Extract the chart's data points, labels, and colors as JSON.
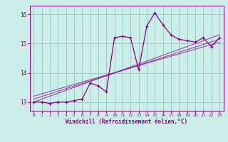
{
  "title": "",
  "xlabel": "Windchill (Refroidissement éolien,°C)",
  "ylabel": "",
  "bg_color": "#cceee8",
  "line_color": "#880088",
  "grid_color": "#99cccc",
  "x_data": [
    0,
    1,
    2,
    3,
    4,
    5,
    6,
    7,
    8,
    9,
    10,
    11,
    12,
    13,
    14,
    15,
    16,
    17,
    18,
    19,
    20,
    21,
    22,
    23
  ],
  "y_main": [
    13.0,
    13.0,
    12.95,
    13.0,
    13.0,
    13.05,
    13.1,
    13.65,
    13.55,
    13.35,
    15.2,
    15.25,
    15.2,
    14.1,
    15.6,
    16.05,
    15.65,
    15.3,
    15.15,
    15.1,
    15.05,
    15.2,
    14.9,
    15.2
  ],
  "ylim": [
    12.7,
    16.3
  ],
  "yticks": [
    13,
    14,
    15,
    16
  ],
  "xticks": [
    0,
    1,
    2,
    3,
    4,
    5,
    6,
    7,
    8,
    9,
    10,
    11,
    12,
    13,
    14,
    15,
    16,
    17,
    18,
    19,
    20,
    21,
    22,
    23
  ],
  "reg_lines": [
    {
      "x0": 0,
      "y0": 13.0,
      "x1": 23,
      "y1": 15.3
    },
    {
      "x0": 0,
      "y0": 13.1,
      "x1": 23,
      "y1": 15.15
    },
    {
      "x0": 0,
      "y0": 13.2,
      "x1": 23,
      "y1": 15.05
    }
  ]
}
